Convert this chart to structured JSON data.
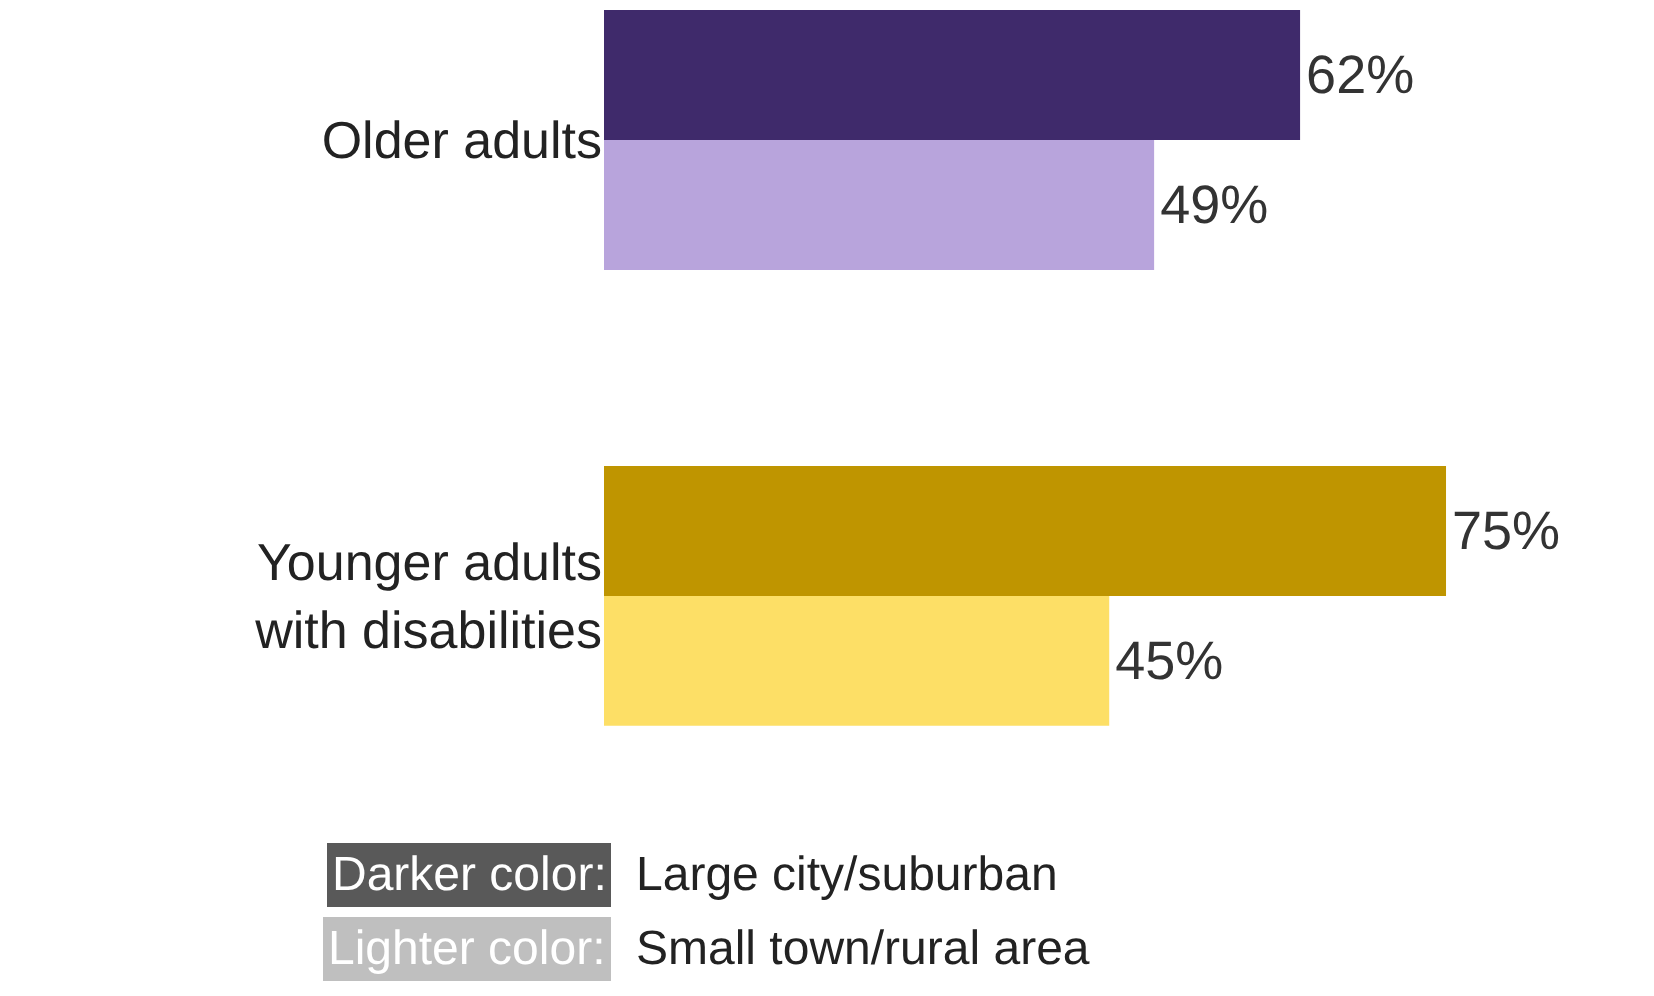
{
  "chart_data": {
    "type": "bar",
    "orientation": "horizontal",
    "tick_labels": "y",
    "categories": [
      "Older adults",
      "Younger adults\nwith disabilities"
    ],
    "series": [
      {
        "colors": [
          "#3f2a6b",
          "#bf9500"
        ],
        "values": [
          62,
          75
        ],
        "value_labels": [
          "62%",
          "75%"
        ]
      },
      {
        "colors": [
          "#b8a4dc",
          "#fddf66"
        ],
        "values": [
          49,
          45
        ],
        "value_labels": [
          "49%",
          "45%"
        ]
      }
    ],
    "annotations": [
      "Darker color:",
      "Large city/suburban",
      "Lighter color:",
      "Small town/rural area"
    ]
  }
}
